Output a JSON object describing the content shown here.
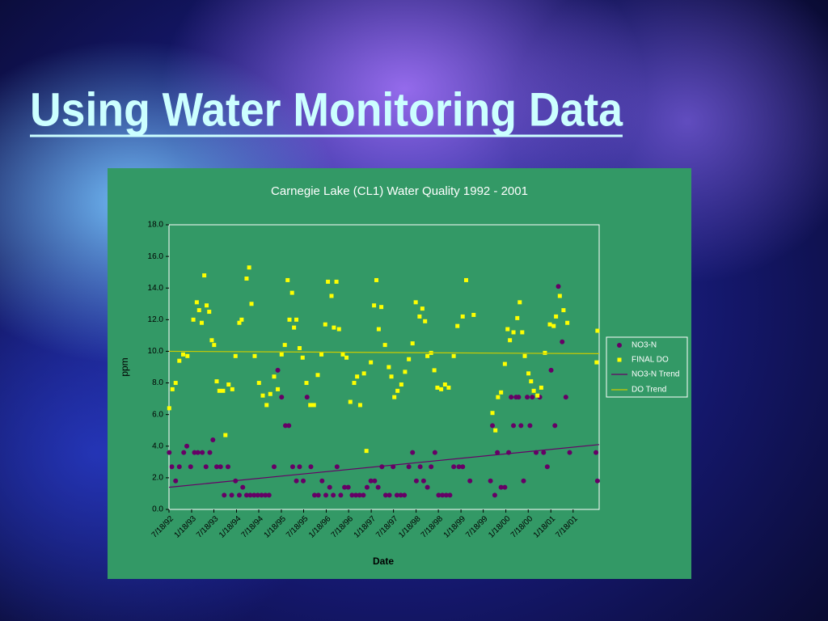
{
  "slide_title": "Using Water Monitoring Data",
  "chart_data": {
    "type": "scatter",
    "title": "Carnegie Lake (CL1) Water Quality 1992 - 2001",
    "x_label": "Date",
    "y_label": "ppm",
    "xlim": [
      "1992-07-18",
      "2002-02-15"
    ],
    "xticks": [
      {
        "value": "1992-07-18",
        "label": "7/18/92"
      },
      {
        "value": "1993-01-18",
        "label": "1/18/93"
      },
      {
        "value": "1993-07-18",
        "label": "7/18/93"
      },
      {
        "value": "1994-01-18",
        "label": "1/18/94"
      },
      {
        "value": "1994-07-18",
        "label": "7/18/94"
      },
      {
        "value": "1995-01-18",
        "label": "1/18/95"
      },
      {
        "value": "1995-07-18",
        "label": "7/18/95"
      },
      {
        "value": "1996-01-18",
        "label": "1/18/96"
      },
      {
        "value": "1996-07-18",
        "label": "7/18/96"
      },
      {
        "value": "1997-01-18",
        "label": "1/18/97"
      },
      {
        "value": "1997-07-18",
        "label": "7/18/97"
      },
      {
        "value": "1998-01-18",
        "label": "1/18/98"
      },
      {
        "value": "1998-07-18",
        "label": "7/18/98"
      },
      {
        "value": "1999-01-18",
        "label": "1/18/99"
      },
      {
        "value": "1999-07-18",
        "label": "7/18/99"
      },
      {
        "value": "2000-01-18",
        "label": "1/18/00"
      },
      {
        "value": "2000-07-18",
        "label": "7/18/00"
      },
      {
        "value": "2001-01-18",
        "label": "1/18/01"
      },
      {
        "value": "2001-07-18",
        "label": "7/18/01"
      }
    ],
    "ylim": [
      0,
      18
    ],
    "yticks": [
      {
        "value": 0,
        "label": "0.0"
      },
      {
        "value": 2,
        "label": "2.0"
      },
      {
        "value": 4,
        "label": "4.0"
      },
      {
        "value": 6,
        "label": "6.0"
      },
      {
        "value": 8,
        "label": "8.0"
      },
      {
        "value": 10,
        "label": "10.0"
      },
      {
        "value": 12,
        "label": "12.0"
      },
      {
        "value": 14,
        "label": "14.0"
      },
      {
        "value": 16,
        "label": "16.0"
      },
      {
        "value": 18,
        "label": "18.0"
      }
    ],
    "legend": "right",
    "series": [
      {
        "name": "NO3-N",
        "color": "#660066",
        "marker": "circle",
        "x": [
          "1992-07-20",
          "1992-08-10",
          "1992-09-10",
          "1992-10-10",
          "1992-11-15",
          "1992-12-10",
          "1993-01-10",
          "1993-02-10",
          "1993-03-10",
          "1993-04-15",
          "1993-05-15",
          "1993-06-15",
          "1993-07-10",
          "1993-08-10",
          "1993-09-10",
          "1993-10-10",
          "1993-11-10",
          "1993-12-10",
          "1994-01-10",
          "1994-02-10",
          "1994-03-10",
          "1994-04-10",
          "1994-05-10",
          "1994-06-10",
          "1994-07-10",
          "1994-08-10",
          "1994-09-10",
          "1994-10-10",
          "1994-11-20",
          "1994-12-20",
          "1995-01-20",
          "1995-02-20",
          "1995-03-20",
          "1995-04-20",
          "1995-05-20",
          "1995-06-15",
          "1995-07-15",
          "1995-08-15",
          "1995-09-15",
          "1995-10-15",
          "1995-11-15",
          "1995-12-15",
          "1996-01-15",
          "1996-02-15",
          "1996-03-15",
          "1996-04-15",
          "1996-05-15",
          "1996-06-15",
          "1996-07-15",
          "1996-08-15",
          "1996-09-15",
          "1996-10-15",
          "1996-11-15",
          "1996-12-15",
          "1997-01-15",
          "1997-02-15",
          "1997-03-15",
          "1997-04-15",
          "1997-05-15",
          "1997-06-15",
          "1997-07-15",
          "1997-08-15",
          "1997-09-15",
          "1997-10-15",
          "1997-11-20",
          "1997-12-20",
          "1998-01-20",
          "1998-02-20",
          "1998-03-20",
          "1998-04-20",
          "1998-05-20",
          "1998-06-20",
          "1998-07-20",
          "1998-08-20",
          "1998-09-20",
          "1998-10-20",
          "1998-11-20",
          "1999-01-01",
          "1999-02-01",
          "1999-04-01",
          "1999-09-15",
          "1999-10-01",
          "1999-10-20",
          "1999-11-10",
          "1999-12-10",
          "2000-01-10",
          "2000-02-10",
          "2000-03-01",
          "2000-03-20",
          "2000-04-10",
          "2000-05-01",
          "2000-05-20",
          "2000-06-10",
          "2000-07-10",
          "2000-08-01",
          "2000-08-20",
          "2000-09-20",
          "2000-10-20",
          "2000-11-20",
          "2000-12-20",
          "2001-01-20",
          "2001-02-20",
          "2001-03-20",
          "2001-04-20",
          "2001-05-20",
          "2001-06-20",
          "2002-01-20",
          "2002-02-01"
        ],
        "values": [
          3.6,
          2.7,
          1.8,
          2.7,
          3.6,
          4.0,
          2.7,
          3.6,
          3.6,
          3.6,
          2.7,
          3.6,
          4.4,
          2.7,
          2.7,
          0.9,
          2.7,
          0.9,
          1.8,
          0.9,
          1.4,
          0.9,
          0.9,
          0.9,
          0.9,
          0.9,
          0.9,
          0.9,
          2.7,
          8.8,
          7.1,
          5.3,
          5.3,
          2.7,
          1.8,
          2.7,
          1.8,
          7.1,
          2.7,
          0.9,
          0.9,
          1.8,
          0.9,
          1.4,
          0.9,
          2.7,
          0.9,
          1.4,
          1.4,
          0.9,
          0.9,
          0.9,
          0.9,
          1.4,
          1.8,
          1.8,
          1.4,
          2.7,
          0.9,
          0.9,
          2.7,
          0.9,
          0.9,
          0.9,
          2.7,
          3.6,
          1.8,
          2.7,
          1.8,
          1.4,
          2.7,
          3.6,
          0.9,
          0.9,
          0.9,
          0.9,
          2.7,
          2.7,
          2.7,
          1.8,
          1.8,
          5.3,
          0.9,
          3.6,
          1.4,
          1.4,
          3.6,
          7.1,
          5.3,
          7.1,
          7.1,
          5.3,
          1.8,
          7.1,
          5.3,
          7.1,
          3.6,
          7.1,
          3.6,
          2.7,
          8.8,
          5.3,
          14.1,
          10.6,
          7.1,
          3.6,
          3.6,
          1.8
        ]
      },
      {
        "name": "FINAL DO",
        "color": "#ffff00",
        "marker": "square",
        "x": [
          "1992-07-20",
          "1992-08-15",
          "1992-09-10",
          "1992-10-10",
          "1992-11-10",
          "1992-12-15",
          "1993-02-01",
          "1993-03-01",
          "1993-03-20",
          "1993-04-10",
          "1993-05-01",
          "1993-05-20",
          "1993-06-10",
          "1993-07-01",
          "1993-07-20",
          "1993-08-10",
          "1993-09-01",
          "1993-10-01",
          "1993-10-20",
          "1993-11-15",
          "1993-12-15",
          "1994-01-10",
          "1994-02-10",
          "1994-03-01",
          "1994-04-10",
          "1994-05-01",
          "1994-05-20",
          "1994-06-15",
          "1994-07-20",
          "1994-08-20",
          "1994-09-20",
          "1994-10-20",
          "1994-11-20",
          "1994-12-20",
          "1995-01-20",
          "1995-02-15",
          "1995-03-10",
          "1995-03-25",
          "1995-04-15",
          "1995-05-01",
          "1995-05-20",
          "1995-06-15",
          "1995-07-10",
          "1995-08-10",
          "1995-09-10",
          "1995-10-10",
          "1995-11-10",
          "1995-12-10",
          "1996-01-10",
          "1996-02-01",
          "1996-03-01",
          "1996-03-20",
          "1996-04-10",
          "1996-05-01",
          "1996-06-01",
          "1996-07-01",
          "1996-08-01",
          "1996-09-01",
          "1996-09-25",
          "1996-10-20",
          "1996-11-20",
          "1996-12-10",
          "1997-01-15",
          "1997-02-10",
          "1997-03-01",
          "1997-03-20",
          "1997-04-10",
          "1997-05-10",
          "1997-06-10",
          "1997-07-01",
          "1997-07-25",
          "1997-08-20",
          "1997-09-20",
          "1997-10-20",
          "1997-11-20",
          "1997-12-20",
          "1998-01-15",
          "1998-02-15",
          "1998-03-10",
          "1998-04-01",
          "1998-04-20",
          "1998-05-20",
          "1998-06-15",
          "1998-07-10",
          "1998-08-10",
          "1998-09-10",
          "1998-10-10",
          "1998-11-20",
          "1998-12-20",
          "1999-02-01",
          "1999-03-01",
          "1999-05-01",
          "1999-10-01",
          "1999-10-25",
          "1999-11-15",
          "1999-12-10",
          "2000-01-10",
          "2000-02-01",
          "2000-02-20",
          "2000-03-20",
          "2000-04-20",
          "2000-05-10",
          "2000-05-30",
          "2000-06-20",
          "2000-07-20",
          "2000-08-10",
          "2000-09-01",
          "2000-10-01",
          "2000-11-01",
          "2000-12-01",
          "2001-01-10",
          "2001-02-10",
          "2001-03-01",
          "2001-04-01",
          "2001-05-01",
          "2001-06-01",
          "2002-01-25",
          "2002-02-01"
        ],
        "values": [
          6.4,
          7.6,
          8.0,
          9.4,
          9.8,
          9.7,
          12.0,
          13.1,
          12.6,
          11.8,
          14.8,
          12.9,
          12.5,
          10.7,
          10.4,
          8.1,
          7.5,
          7.5,
          4.7,
          7.9,
          7.6,
          9.7,
          11.8,
          12.0,
          14.6,
          15.3,
          13.0,
          9.7,
          8.0,
          7.2,
          6.6,
          7.3,
          8.4,
          7.6,
          9.8,
          10.4,
          14.5,
          12.0,
          13.7,
          11.5,
          12.0,
          10.2,
          9.6,
          8.0,
          6.6,
          6.6,
          8.5,
          9.8,
          11.7,
          14.4,
          13.5,
          11.5,
          14.4,
          11.4,
          9.8,
          9.6,
          6.8,
          8.0,
          8.4,
          6.6,
          8.6,
          3.7,
          9.3,
          12.9,
          14.5,
          11.4,
          12.8,
          10.4,
          9.0,
          8.4,
          7.1,
          7.5,
          7.9,
          8.7,
          9.5,
          10.5,
          13.1,
          12.2,
          12.7,
          11.9,
          9.7,
          9.9,
          8.8,
          7.7,
          7.6,
          7.9,
          7.7,
          9.7,
          11.6,
          12.2,
          14.5,
          12.3,
          6.1,
          5.0,
          7.1,
          7.4,
          9.2,
          11.4,
          10.7,
          11.2,
          12.1,
          13.1,
          11.2,
          9.7,
          8.6,
          8.1,
          7.5,
          7.2,
          7.7,
          9.9,
          11.7,
          11.6,
          12.2,
          13.5,
          12.6,
          11.8,
          9.3,
          11.3
        ]
      },
      {
        "name": "NO3-N Trend",
        "color": "#660066",
        "marker": "line",
        "x": [
          "1992-07-18",
          "2002-02-15"
        ],
        "values": [
          1.4,
          4.1
        ]
      },
      {
        "name": "DO Trend",
        "color": "#cccc00",
        "marker": "line",
        "x": [
          "1992-07-18",
          "2002-02-15"
        ],
        "values": [
          10.0,
          9.85
        ]
      }
    ]
  }
}
